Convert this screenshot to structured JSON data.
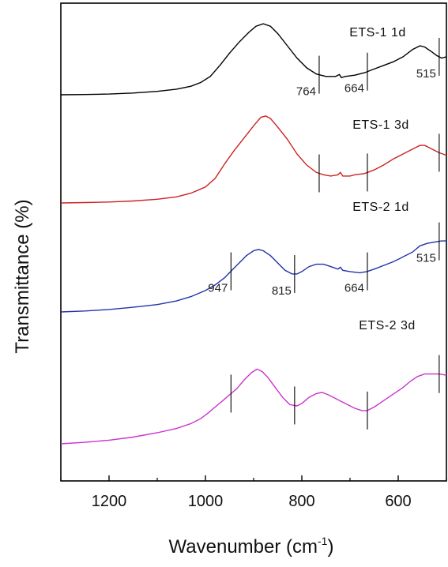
{
  "chart_data": {
    "type": "line",
    "title": "",
    "xlabel": "Wavenumber",
    "xlabel_unit_base": "cm",
    "xlabel_unit_exp": "-1",
    "ylabel": "Transmittance (%)",
    "xlim": [
      1300,
      500
    ],
    "x_reversed": true,
    "xticks": [
      1200,
      1000,
      800,
      600
    ],
    "yticks_shown": false,
    "grid": false,
    "legend": "none",
    "series": [
      {
        "name": "ETS-1 1d",
        "color": "#000000",
        "points": [
          [
            1300,
            0.0
          ],
          [
            1250,
            0.2
          ],
          [
            1200,
            0.6
          ],
          [
            1150,
            1.4
          ],
          [
            1100,
            2.8
          ],
          [
            1060,
            4.6
          ],
          [
            1030,
            7.0
          ],
          [
            1010,
            10.0
          ],
          [
            990,
            15.0
          ],
          [
            970,
            24.0
          ],
          [
            950,
            34.0
          ],
          [
            930,
            43.0
          ],
          [
            910,
            51.0
          ],
          [
            895,
            56.0
          ],
          [
            880,
            58.0
          ],
          [
            865,
            56.0
          ],
          [
            850,
            50.0
          ],
          [
            830,
            40.0
          ],
          [
            810,
            30.0
          ],
          [
            790,
            22.0
          ],
          [
            770,
            17.0
          ],
          [
            750,
            15.0
          ],
          [
            730,
            15.0
          ],
          [
            722,
            16.5
          ],
          [
            718,
            14.0
          ],
          [
            710,
            15.0
          ],
          [
            690,
            16.0
          ],
          [
            670,
            18.0
          ],
          [
            650,
            21.0
          ],
          [
            630,
            24.0
          ],
          [
            610,
            27.0
          ],
          [
            590,
            31.0
          ],
          [
            570,
            37.0
          ],
          [
            555,
            40.0
          ],
          [
            545,
            39.0
          ],
          [
            530,
            35.0
          ],
          [
            520,
            32.0
          ],
          [
            510,
            30.0
          ],
          [
            500,
            31.0
          ]
        ]
      },
      {
        "name": "ETS-1 3d",
        "color": "#cc2222",
        "points": [
          [
            1300,
            0.0
          ],
          [
            1250,
            0.3
          ],
          [
            1200,
            0.8
          ],
          [
            1150,
            1.6
          ],
          [
            1100,
            3.0
          ],
          [
            1060,
            5.0
          ],
          [
            1030,
            8.0
          ],
          [
            1000,
            13.0
          ],
          [
            980,
            20.0
          ],
          [
            960,
            32.0
          ],
          [
            940,
            43.0
          ],
          [
            920,
            53.0
          ],
          [
            900,
            63.0
          ],
          [
            885,
            70.0
          ],
          [
            875,
            71.0
          ],
          [
            865,
            69.0
          ],
          [
            850,
            62.0
          ],
          [
            830,
            52.0
          ],
          [
            810,
            40.0
          ],
          [
            790,
            31.0
          ],
          [
            770,
            25.0
          ],
          [
            755,
            23.0
          ],
          [
            740,
            22.0
          ],
          [
            725,
            23.0
          ],
          [
            720,
            25.0
          ],
          [
            715,
            22.0
          ],
          [
            700,
            22.0
          ],
          [
            690,
            23.0
          ],
          [
            670,
            24.0
          ],
          [
            650,
            27.0
          ],
          [
            630,
            31.0
          ],
          [
            610,
            36.0
          ],
          [
            590,
            40.0
          ],
          [
            570,
            44.0
          ],
          [
            555,
            47.0
          ],
          [
            545,
            47.0
          ],
          [
            530,
            44.0
          ],
          [
            515,
            41.0
          ],
          [
            500,
            39.0
          ]
        ]
      },
      {
        "name": "ETS-2 1d",
        "color": "#2233aa",
        "points": [
          [
            1300,
            0.0
          ],
          [
            1250,
            0.8
          ],
          [
            1200,
            2.0
          ],
          [
            1150,
            3.8
          ],
          [
            1100,
            6.0
          ],
          [
            1060,
            9.0
          ],
          [
            1030,
            12.5
          ],
          [
            1000,
            17.5
          ],
          [
            980,
            22.0
          ],
          [
            960,
            28.0
          ],
          [
            945,
            34.0
          ],
          [
            930,
            40.0
          ],
          [
            915,
            46.0
          ],
          [
            900,
            50.0
          ],
          [
            890,
            51.0
          ],
          [
            880,
            50.0
          ],
          [
            865,
            46.0
          ],
          [
            850,
            40.0
          ],
          [
            835,
            34.0
          ],
          [
            820,
            31.0
          ],
          [
            810,
            31.0
          ],
          [
            800,
            33.0
          ],
          [
            785,
            37.0
          ],
          [
            770,
            39.0
          ],
          [
            755,
            39.0
          ],
          [
            740,
            37.0
          ],
          [
            725,
            35.0
          ],
          [
            720,
            36.5
          ],
          [
            715,
            34.0
          ],
          [
            700,
            33.0
          ],
          [
            680,
            32.0
          ],
          [
            665,
            33.0
          ],
          [
            650,
            35.0
          ],
          [
            630,
            38.0
          ],
          [
            610,
            41.0
          ],
          [
            590,
            45.0
          ],
          [
            570,
            49.0
          ],
          [
            555,
            54.0
          ],
          [
            540,
            56.0
          ],
          [
            525,
            57.0
          ],
          [
            510,
            58.0
          ],
          [
            500,
            58.0
          ]
        ]
      },
      {
        "name": "ETS-2 3d",
        "color": "#cc33cc",
        "points": [
          [
            1300,
            0.0
          ],
          [
            1250,
            1.2
          ],
          [
            1200,
            3.0
          ],
          [
            1150,
            5.5
          ],
          [
            1100,
            9.0
          ],
          [
            1060,
            12.5
          ],
          [
            1030,
            16.5
          ],
          [
            1010,
            20.5
          ],
          [
            995,
            25.0
          ],
          [
            980,
            30.0
          ],
          [
            965,
            35.0
          ],
          [
            950,
            40.0
          ],
          [
            935,
            45.0
          ],
          [
            920,
            52.0
          ],
          [
            905,
            58.0
          ],
          [
            893,
            61.0
          ],
          [
            882,
            59.0
          ],
          [
            870,
            54.0
          ],
          [
            855,
            46.0
          ],
          [
            840,
            38.0
          ],
          [
            825,
            32.0
          ],
          [
            810,
            31.0
          ],
          [
            800,
            33.0
          ],
          [
            785,
            38.0
          ],
          [
            770,
            41.0
          ],
          [
            758,
            42.0
          ],
          [
            745,
            40.0
          ],
          [
            730,
            37.0
          ],
          [
            710,
            33.0
          ],
          [
            690,
            29.0
          ],
          [
            675,
            27.0
          ],
          [
            665,
            27.0
          ],
          [
            650,
            30.0
          ],
          [
            635,
            34.0
          ],
          [
            620,
            38.0
          ],
          [
            605,
            42.0
          ],
          [
            590,
            46.0
          ],
          [
            575,
            51.0
          ],
          [
            560,
            55.0
          ],
          [
            545,
            57.0
          ],
          [
            530,
            57.0
          ],
          [
            515,
            57.0
          ],
          [
            500,
            56.0
          ]
        ]
      }
    ],
    "series_labels": [
      "ETS-1 1d",
      "ETS-1 3d",
      "ETS-2 1d",
      "ETS-2 3d"
    ],
    "marker_lines": [
      {
        "series": 0,
        "x": [
          764,
          664,
          515
        ]
      },
      {
        "series": 1,
        "x": [
          764,
          664,
          515
        ]
      },
      {
        "series": 2,
        "x": [
          947,
          815,
          664,
          515
        ]
      },
      {
        "series": 3,
        "x": [
          947,
          815,
          664,
          515
        ]
      }
    ],
    "annotations": [
      {
        "series": 0,
        "x": 764,
        "text": "764"
      },
      {
        "series": 0,
        "x": 664,
        "text": "664"
      },
      {
        "series": 0,
        "x": 515,
        "text": "515"
      },
      {
        "series": 2,
        "x": 947,
        "text": "947"
      },
      {
        "series": 2,
        "x": 815,
        "text": "815"
      },
      {
        "series": 2,
        "x": 664,
        "text": "664"
      },
      {
        "series": 2,
        "x": 515,
        "text": "515"
      }
    ]
  }
}
